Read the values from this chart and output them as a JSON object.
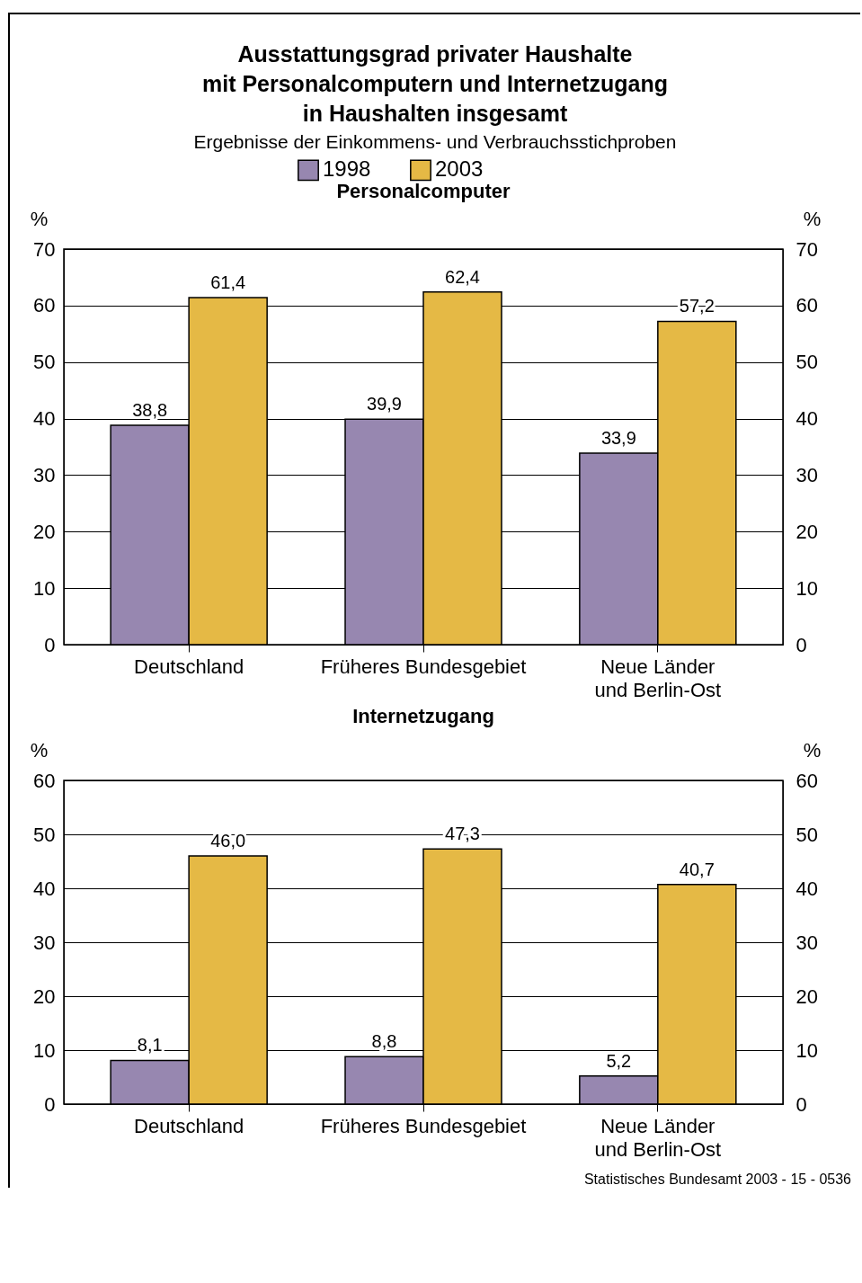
{
  "chart_data": [
    {
      "type": "other",
      "title": "Ausstattungsgrad privater Haushalte\nmit Personalcomputern und Internetzugang\nin Haushalten insgesamt",
      "subtitle": "Ergebnisse der Einkommens- und Verbrauchsstichproben"
    },
    {
      "type": "bar",
      "title": "Personalcomputer",
      "categories": [
        "Deutschland",
        "Früheres Bundesgebiet",
        "Neue Länder\nund Berlin-Ost"
      ],
      "series": [
        {
          "name": "1998",
          "color": "#9787b0",
          "values": [
            38.8,
            39.9,
            33.9
          ],
          "value_labels": [
            "38,8",
            "39,9",
            "33,9"
          ]
        },
        {
          "name": "2003",
          "color": "#e5b945",
          "values": [
            61.4,
            62.4,
            57.2
          ],
          "value_labels": [
            "61,4",
            "62,4",
            "57,2"
          ]
        }
      ],
      "ylabel": "%",
      "y2label": "%",
      "ylim": [
        0,
        70
      ],
      "yticks": [
        0,
        10,
        20,
        30,
        40,
        50,
        60,
        70
      ],
      "y2lim": [
        0,
        70
      ],
      "y2ticks": [
        0,
        10,
        20,
        30,
        40,
        50,
        60,
        70
      ],
      "grid": "y",
      "legend": "top"
    },
    {
      "type": "bar",
      "title": "Internetzugang",
      "categories": [
        "Deutschland",
        "Früheres Bundesgebiet",
        "Neue Länder\nund Berlin-Ost"
      ],
      "series": [
        {
          "color": "#9787b0",
          "values": [
            8.1,
            8.8,
            5.2
          ],
          "value_labels": [
            "8,1",
            "8,8",
            "5,2"
          ]
        },
        {
          "color": "#e5b945",
          "values": [
            46.0,
            47.3,
            40.7
          ],
          "value_labels": [
            "46,0",
            "47,3",
            "40,7"
          ]
        }
      ],
      "ylabel": "%",
      "y2label": "%",
      "ylim": [
        0,
        60
      ],
      "yticks": [
        0,
        10,
        20,
        30,
        40,
        50,
        60
      ],
      "y2lim": [
        0,
        60
      ],
      "y2ticks": [
        0,
        10,
        20,
        30,
        40,
        50,
        60
      ],
      "grid": "y",
      "annotations": [
        "Statistisches Bundesamt 2003 - 15 - 0536"
      ]
    }
  ]
}
